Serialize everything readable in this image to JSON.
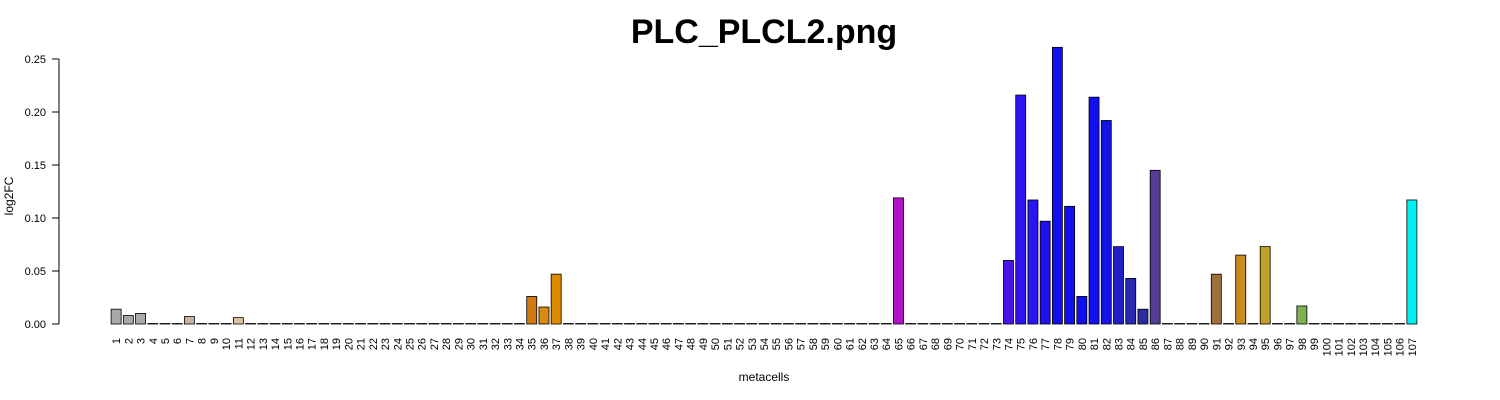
{
  "chart_data": {
    "type": "bar",
    "title": "PLC_PLCL2.png",
    "xlabel": "metacells",
    "ylabel": "log2FC",
    "ylim": [
      0,
      0.25
    ],
    "yticks": [
      "0.00",
      "0.05",
      "0.10",
      "0.15",
      "0.20",
      "0.25"
    ],
    "grid": false,
    "categories": [
      "1",
      "2",
      "3",
      "4",
      "5",
      "6",
      "7",
      "8",
      "9",
      "10",
      "11",
      "12",
      "13",
      "14",
      "15",
      "16",
      "17",
      "18",
      "19",
      "20",
      "21",
      "22",
      "23",
      "24",
      "25",
      "26",
      "27",
      "28",
      "29",
      "30",
      "31",
      "32",
      "33",
      "34",
      "35",
      "36",
      "37",
      "38",
      "39",
      "40",
      "41",
      "42",
      "43",
      "44",
      "45",
      "46",
      "47",
      "48",
      "49",
      "50",
      "51",
      "52",
      "53",
      "54",
      "55",
      "56",
      "57",
      "58",
      "59",
      "60",
      "61",
      "62",
      "63",
      "64",
      "65",
      "66",
      "67",
      "68",
      "69",
      "70",
      "71",
      "72",
      "73",
      "74",
      "75",
      "76",
      "77",
      "78",
      "79",
      "80",
      "81",
      "82",
      "83",
      "84",
      "85",
      "86",
      "87",
      "88",
      "89",
      "90",
      "91",
      "92",
      "93",
      "94",
      "95",
      "96",
      "97",
      "98",
      "99",
      "100",
      "101",
      "102",
      "103",
      "104",
      "105",
      "106",
      "107"
    ],
    "values": [
      0.014,
      0.008,
      0.01,
      0,
      0,
      0,
      0.007,
      0,
      0,
      0,
      0.006,
      0,
      0,
      0,
      0,
      0,
      0,
      0,
      0,
      0,
      0,
      0,
      0,
      0,
      0,
      0,
      0,
      0,
      0,
      0,
      0,
      0,
      0,
      0,
      0.026,
      0.016,
      0.047,
      0,
      0,
      0,
      0,
      0,
      0,
      0,
      0,
      0,
      0,
      0,
      0,
      0,
      0,
      0,
      0,
      0,
      0,
      0,
      0,
      0,
      0,
      0,
      0,
      0,
      0,
      0,
      0.119,
      0,
      0,
      0,
      0,
      0,
      0,
      0,
      0,
      0.06,
      0.216,
      0.117,
      0.097,
      0.261,
      0.111,
      0.026,
      0.214,
      0.192,
      0.073,
      0.043,
      0.014,
      0.145,
      0,
      0,
      0,
      0,
      0.047,
      0,
      0.065,
      0,
      0.073,
      0,
      0,
      0.017,
      0,
      0,
      0,
      0,
      0,
      0,
      0,
      0,
      0.117
    ],
    "colors": {
      "1": "#a9a9a9",
      "2": "#a9a9a9",
      "3": "#a9a9a9",
      "7": "#c8b49b",
      "11": "#dcc0a0",
      "35": "#d07a10",
      "36": "#d98a10",
      "37": "#e08a00",
      "65": "#b414c8",
      "74": "#4a14e6",
      "75": "#3014f0",
      "76": "#2a14f0",
      "77": "#2010f0",
      "78": "#1010f0",
      "79": "#1010f0",
      "80": "#1010f0",
      "81": "#1010f0",
      "82": "#1414e6",
      "83": "#2020c8",
      "84": "#2828b4",
      "85": "#2c2ca0",
      "86": "#553c96",
      "91": "#a0703c",
      "93": "#c88c1e",
      "95": "#c0a028",
      "98": "#80b050",
      "107": "#00f0f0"
    },
    "default_color": "#bbbbbb"
  }
}
